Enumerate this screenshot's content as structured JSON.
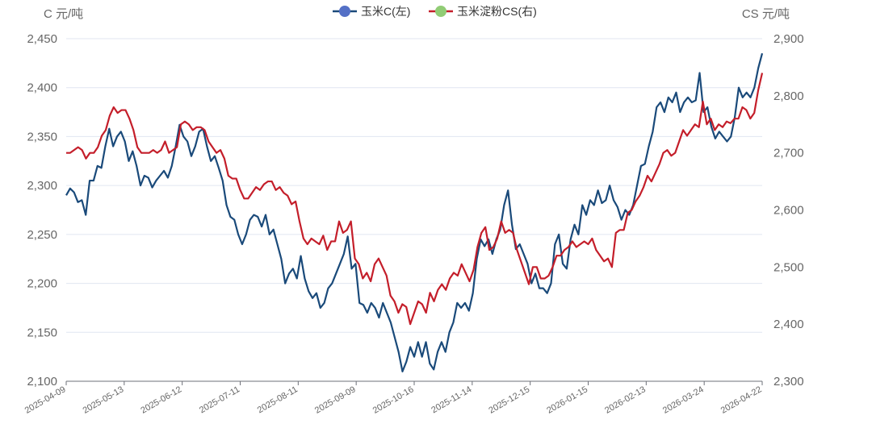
{
  "chart_data": {
    "type": "line",
    "left_axis": {
      "unit_label": "C 元/吨",
      "range": [
        2100,
        2450
      ],
      "ticks": [
        "2,100",
        "2,150",
        "2,200",
        "2,250",
        "2,300",
        "2,350",
        "2,400",
        "2,450"
      ]
    },
    "right_axis": {
      "unit_label": "CS 元/吨",
      "range": [
        2300,
        2900
      ],
      "ticks": [
        "2,300",
        "2,400",
        "2,500",
        "2,600",
        "2,700",
        "2,800",
        "2,900"
      ]
    },
    "x_tick_labels": [
      "2025-04-09",
      "2025-05-13",
      "2025-06-12",
      "2025-07-11",
      "2025-08-11",
      "2025-09-09",
      "2025-10-16",
      "2025-11-14",
      "2025-12-15",
      "2026-01-15",
      "2026-02-13",
      "2026-03-24",
      "2026-04-22"
    ],
    "grid": true,
    "legend_position": "top-center",
    "series": [
      {
        "name": "玉米C(左)",
        "axis": "left",
        "color": "#1a4a7a",
        "legend_marker_color": "#5470c6",
        "values": [
          2290,
          2297,
          2293,
          2283,
          2285,
          2270,
          2305,
          2305,
          2320,
          2318,
          2340,
          2358,
          2340,
          2350,
          2355,
          2345,
          2325,
          2335,
          2320,
          2300,
          2310,
          2308,
          2298,
          2305,
          2310,
          2315,
          2308,
          2320,
          2340,
          2362,
          2350,
          2345,
          2330,
          2340,
          2355,
          2358,
          2340,
          2325,
          2330,
          2318,
          2305,
          2280,
          2268,
          2265,
          2250,
          2240,
          2250,
          2265,
          2270,
          2268,
          2258,
          2270,
          2250,
          2255,
          2240,
          2225,
          2200,
          2210,
          2215,
          2205,
          2228,
          2205,
          2192,
          2185,
          2190,
          2175,
          2180,
          2195,
          2200,
          2210,
          2220,
          2230,
          2248,
          2215,
          2220,
          2180,
          2178,
          2170,
          2180,
          2175,
          2165,
          2180,
          2170,
          2160,
          2145,
          2130,
          2110,
          2120,
          2135,
          2125,
          2140,
          2125,
          2140,
          2118,
          2112,
          2130,
          2140,
          2130,
          2150,
          2160,
          2180,
          2175,
          2180,
          2172,
          2190,
          2225,
          2245,
          2238,
          2245,
          2230,
          2245,
          2255,
          2280,
          2295,
          2260,
          2235,
          2240,
          2230,
          2220,
          2200,
          2210,
          2195,
          2195,
          2190,
          2200,
          2240,
          2250,
          2220,
          2215,
          2245,
          2260,
          2250,
          2280,
          2270,
          2285,
          2280,
          2295,
          2282,
          2285,
          2300,
          2285,
          2278,
          2265,
          2275,
          2270,
          2280,
          2300,
          2320,
          2322,
          2340,
          2355,
          2380,
          2385,
          2375,
          2390,
          2385,
          2395,
          2375,
          2385,
          2390,
          2385,
          2387,
          2415,
          2375,
          2380,
          2360,
          2348,
          2355,
          2350,
          2345,
          2350,
          2370,
          2400,
          2390,
          2395,
          2390,
          2400,
          2420,
          2435
        ]
      },
      {
        "name": "玉米淀粉CS(右)",
        "axis": "right",
        "color": "#c41e2a",
        "legend_marker_color": "#91cc75",
        "values": [
          2700,
          2700,
          2705,
          2710,
          2705,
          2690,
          2700,
          2700,
          2710,
          2730,
          2740,
          2765,
          2780,
          2770,
          2775,
          2775,
          2760,
          2740,
          2710,
          2700,
          2700,
          2700,
          2705,
          2700,
          2705,
          2720,
          2700,
          2705,
          2710,
          2750,
          2755,
          2750,
          2740,
          2745,
          2745,
          2740,
          2720,
          2710,
          2700,
          2705,
          2690,
          2660,
          2655,
          2655,
          2635,
          2620,
          2620,
          2630,
          2640,
          2635,
          2645,
          2650,
          2650,
          2635,
          2640,
          2630,
          2625,
          2610,
          2615,
          2580,
          2550,
          2540,
          2550,
          2545,
          2540,
          2555,
          2530,
          2545,
          2545,
          2580,
          2560,
          2565,
          2580,
          2515,
          2505,
          2480,
          2490,
          2475,
          2505,
          2515,
          2500,
          2485,
          2450,
          2440,
          2420,
          2435,
          2430,
          2400,
          2420,
          2440,
          2435,
          2420,
          2455,
          2440,
          2460,
          2470,
          2460,
          2480,
          2490,
          2485,
          2505,
          2490,
          2475,
          2495,
          2535,
          2560,
          2570,
          2530,
          2535,
          2550,
          2580,
          2560,
          2565,
          2560,
          2530,
          2510,
          2490,
          2470,
          2500,
          2500,
          2480,
          2480,
          2485,
          2500,
          2520,
          2520,
          2530,
          2535,
          2545,
          2535,
          2540,
          2545,
          2540,
          2550,
          2530,
          2520,
          2510,
          2515,
          2500,
          2560,
          2565,
          2565,
          2595,
          2600,
          2615,
          2625,
          2640,
          2660,
          2650,
          2665,
          2680,
          2700,
          2705,
          2695,
          2700,
          2720,
          2740,
          2730,
          2740,
          2750,
          2745,
          2790,
          2750,
          2760,
          2740,
          2750,
          2745,
          2755,
          2752,
          2760,
          2760,
          2780,
          2775,
          2760,
          2770,
          2810,
          2840
        ]
      }
    ]
  }
}
